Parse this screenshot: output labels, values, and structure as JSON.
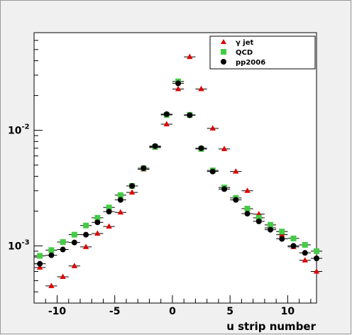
{
  "chart_data": {
    "type": "scatter",
    "title": "",
    "xlabel": "u strip number",
    "ylabel": "",
    "xlim": [
      -12,
      12.5
    ],
    "ylim": [
      0.00032,
      0.07
    ],
    "yscale": "log",
    "grid": false,
    "legend_position": "top-right",
    "x_ticks": [
      -10,
      -5,
      0,
      5,
      10
    ],
    "x_tick_labels": [
      "-10",
      "-5",
      "0",
      "5",
      "10"
    ],
    "y_ticks": [
      0.001,
      0.01
    ],
    "y_tick_labels": [
      {
        "base": "10",
        "exp": "-3"
      },
      {
        "base": "10",
        "exp": "-2"
      }
    ],
    "x": [
      -11.5,
      -10.5,
      -9.5,
      -8.5,
      -7.5,
      -6.5,
      -5.5,
      -4.5,
      -3.5,
      -2.5,
      -1.5,
      -0.5,
      0.5,
      1.5,
      2.5,
      3.5,
      4.5,
      5.5,
      6.5,
      7.5,
      8.5,
      9.5,
      10.5,
      11.5,
      12.5
    ],
    "series": [
      {
        "name": "γ jet",
        "marker": "triangle",
        "color": "#e00000",
        "values": [
          0.00065,
          0.00045,
          0.00054,
          0.00067,
          0.00098,
          0.00128,
          0.00147,
          0.00195,
          0.0029,
          0.0046,
          0.0071,
          0.0113,
          0.0228,
          0.0432,
          0.0228,
          0.0104,
          0.0069,
          0.0044,
          0.003,
          0.00188,
          0.00143,
          0.00125,
          0.00098,
          0.00075,
          0.0006
        ]
      },
      {
        "name": "QCD",
        "marker": "square",
        "color": "#44cc44",
        "values": [
          0.00082,
          0.00092,
          0.00108,
          0.00125,
          0.0015,
          0.00175,
          0.00215,
          0.00275,
          0.0033,
          0.0047,
          0.0072,
          0.0136,
          0.0265,
          0.0136,
          0.0069,
          0.0045,
          0.0032,
          0.0026,
          0.0021,
          0.00175,
          0.00152,
          0.00133,
          0.00116,
          0.00102,
          0.0009
        ]
      },
      {
        "name": "pp2006",
        "marker": "circle",
        "color": "#000000",
        "values": [
          0.0007,
          0.00083,
          0.00093,
          0.00107,
          0.00125,
          0.0016,
          0.00198,
          0.0025,
          0.0033,
          0.0047,
          0.0073,
          0.0138,
          0.0255,
          0.0135,
          0.007,
          0.0044,
          0.0031,
          0.0025,
          0.0019,
          0.00163,
          0.00138,
          0.00115,
          0.001,
          0.00087,
          0.00078
        ]
      }
    ]
  }
}
